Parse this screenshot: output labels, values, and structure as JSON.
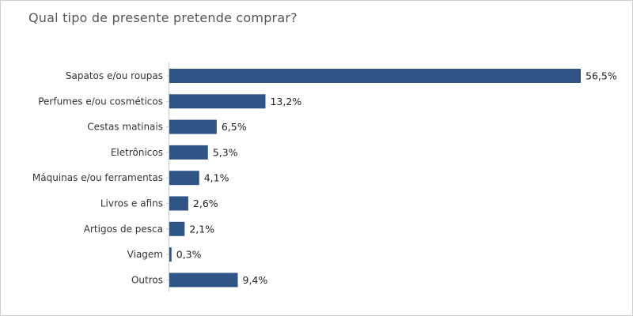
{
  "chart_data": {
    "type": "bar",
    "orientation": "horizontal",
    "title": "Qual tipo de presente pretende comprar?",
    "xlabel": "",
    "ylabel": "",
    "xlim": [
      0,
      60
    ],
    "grid": false,
    "legend": "none",
    "bar_color": "#2e5585",
    "categories": [
      "Sapatos e/ou roupas",
      "Perfumes e/ou cosméticos",
      "Cestas matinais",
      "Eletrônicos",
      "Máquinas e/ou ferramentas",
      "Livros e afins",
      "Artigos de pesca",
      "Viagem",
      "Outros"
    ],
    "values": [
      56.5,
      13.2,
      6.5,
      5.3,
      4.1,
      2.6,
      2.1,
      0.3,
      9.4
    ],
    "value_labels": [
      "56,5%",
      "13,2%",
      "6,5%",
      "5,3%",
      "4,1%",
      "2,6%",
      "2,1%",
      "0,3%",
      "9,4%"
    ]
  }
}
